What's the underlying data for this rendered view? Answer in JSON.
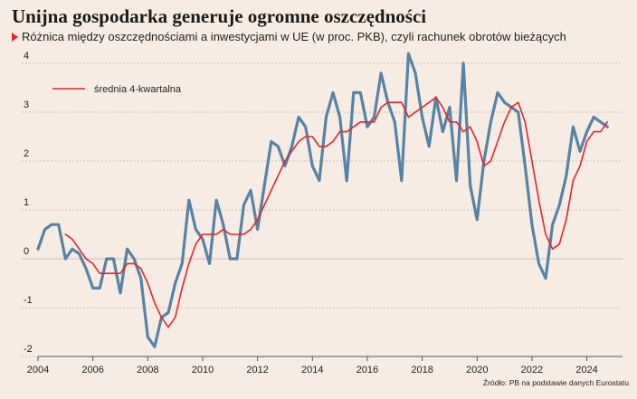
{
  "title": "Unijna gospodarka generuje ogromne oszczędności",
  "subtitle": "Różnica między oszczędnościami a inwestycjami w UE (w proc. PKB), czyli rachunek obrotów bieżących",
  "source": "Źródło: PB na podstawie danych Eurostatu",
  "colors": {
    "background": "#f7ece3",
    "main_series": "#5683a6",
    "avg_series": "#e0262b",
    "grid": "#b9b1ab",
    "accent": "#e0262b"
  },
  "chart_data": {
    "type": "line",
    "title": "Unijna gospodarka generuje ogromne oszczędności",
    "xlabel": "",
    "ylabel": "",
    "xlim": [
      2004,
      2025.3
    ],
    "ylim": [
      -2,
      4
    ],
    "grid": true,
    "legend_position": "top-left",
    "x_ticks": [
      "2004",
      "2006",
      "2008",
      "2010",
      "2012",
      "2014",
      "2016",
      "2018",
      "2020",
      "2022",
      "2024"
    ],
    "y_ticks": [
      "-2",
      "-1",
      "0",
      "1",
      "2",
      "3",
      "4"
    ],
    "series": [
      {
        "name": "",
        "values": [
          [
            2004.0,
            0.2
          ],
          [
            2004.25,
            0.6
          ],
          [
            2004.5,
            0.7
          ],
          [
            2004.75,
            0.7
          ],
          [
            2005.0,
            0.0
          ],
          [
            2005.25,
            0.2
          ],
          [
            2005.5,
            0.1
          ],
          [
            2005.75,
            -0.2
          ],
          [
            2006.0,
            -0.6
          ],
          [
            2006.25,
            -0.6
          ],
          [
            2006.5,
            0.0
          ],
          [
            2006.75,
            0.0
          ],
          [
            2007.0,
            -0.7
          ],
          [
            2007.25,
            0.2
          ],
          [
            2007.5,
            0.0
          ],
          [
            2007.75,
            -0.4
          ],
          [
            2008.0,
            -1.6
          ],
          [
            2008.25,
            -1.8
          ],
          [
            2008.5,
            -1.2
          ],
          [
            2008.75,
            -1.1
          ],
          [
            2009.0,
            -0.5
          ],
          [
            2009.25,
            -0.1
          ],
          [
            2009.5,
            1.2
          ],
          [
            2009.75,
            0.6
          ],
          [
            2010.0,
            0.4
          ],
          [
            2010.25,
            -0.1
          ],
          [
            2010.5,
            1.2
          ],
          [
            2010.75,
            0.7
          ],
          [
            2011.0,
            0.0
          ],
          [
            2011.25,
            0.0
          ],
          [
            2011.5,
            1.1
          ],
          [
            2011.75,
            1.4
          ],
          [
            2012.0,
            0.6
          ],
          [
            2012.25,
            1.5
          ],
          [
            2012.5,
            2.4
          ],
          [
            2012.75,
            2.3
          ],
          [
            2013.0,
            1.9
          ],
          [
            2013.25,
            2.3
          ],
          [
            2013.5,
            2.9
          ],
          [
            2013.75,
            2.7
          ],
          [
            2014.0,
            1.9
          ],
          [
            2014.25,
            1.6
          ],
          [
            2014.5,
            2.9
          ],
          [
            2014.75,
            3.4
          ],
          [
            2015.0,
            2.9
          ],
          [
            2015.25,
            1.6
          ],
          [
            2015.5,
            3.4
          ],
          [
            2015.75,
            3.4
          ],
          [
            2016.0,
            2.7
          ],
          [
            2016.25,
            2.9
          ],
          [
            2016.5,
            3.8
          ],
          [
            2016.75,
            3.2
          ],
          [
            2017.0,
            2.8
          ],
          [
            2017.25,
            1.6
          ],
          [
            2017.5,
            4.2
          ],
          [
            2017.75,
            3.8
          ],
          [
            2018.0,
            2.9
          ],
          [
            2018.25,
            2.3
          ],
          [
            2018.5,
            3.3
          ],
          [
            2018.75,
            2.6
          ],
          [
            2019.0,
            3.1
          ],
          [
            2019.25,
            1.6
          ],
          [
            2019.5,
            4.0
          ],
          [
            2019.75,
            1.5
          ],
          [
            2020.0,
            0.8
          ],
          [
            2020.25,
            2.0
          ],
          [
            2020.5,
            2.8
          ],
          [
            2020.75,
            3.4
          ],
          [
            2021.0,
            3.2
          ],
          [
            2021.25,
            3.1
          ],
          [
            2021.5,
            3.0
          ],
          [
            2021.75,
            1.9
          ],
          [
            2022.0,
            0.7
          ],
          [
            2022.25,
            -0.1
          ],
          [
            2022.5,
            -0.4
          ],
          [
            2022.75,
            0.7
          ],
          [
            2023.0,
            1.1
          ],
          [
            2023.25,
            1.7
          ],
          [
            2023.5,
            2.7
          ],
          [
            2023.75,
            2.2
          ],
          [
            2024.0,
            2.6
          ],
          [
            2024.25,
            2.9
          ],
          [
            2024.5,
            2.8
          ],
          [
            2024.75,
            2.7
          ]
        ]
      },
      {
        "name": "średnia 4-kwartalna",
        "values": [
          [
            2005.0,
            0.5
          ],
          [
            2005.25,
            0.4
          ],
          [
            2005.5,
            0.2
          ],
          [
            2005.75,
            0.0
          ],
          [
            2006.0,
            -0.1
          ],
          [
            2006.25,
            -0.3
          ],
          [
            2006.5,
            -0.3
          ],
          [
            2006.75,
            -0.3
          ],
          [
            2007.0,
            -0.3
          ],
          [
            2007.25,
            -0.1
          ],
          [
            2007.5,
            -0.1
          ],
          [
            2007.75,
            -0.2
          ],
          [
            2008.0,
            -0.5
          ],
          [
            2008.25,
            -0.9
          ],
          [
            2008.5,
            -1.2
          ],
          [
            2008.75,
            -1.4
          ],
          [
            2009.0,
            -1.2
          ],
          [
            2009.25,
            -0.6
          ],
          [
            2009.5,
            -0.1
          ],
          [
            2009.75,
            0.3
          ],
          [
            2010.0,
            0.5
          ],
          [
            2010.25,
            0.5
          ],
          [
            2010.5,
            0.5
          ],
          [
            2010.75,
            0.6
          ],
          [
            2011.0,
            0.5
          ],
          [
            2011.25,
            0.5
          ],
          [
            2011.5,
            0.5
          ],
          [
            2011.75,
            0.6
          ],
          [
            2012.0,
            0.8
          ],
          [
            2012.25,
            1.1
          ],
          [
            2012.5,
            1.4
          ],
          [
            2012.75,
            1.7
          ],
          [
            2013.0,
            2.0
          ],
          [
            2013.25,
            2.2
          ],
          [
            2013.5,
            2.4
          ],
          [
            2013.75,
            2.5
          ],
          [
            2014.0,
            2.5
          ],
          [
            2014.25,
            2.3
          ],
          [
            2014.5,
            2.3
          ],
          [
            2014.75,
            2.4
          ],
          [
            2015.0,
            2.6
          ],
          [
            2015.25,
            2.6
          ],
          [
            2015.5,
            2.7
          ],
          [
            2015.75,
            2.8
          ],
          [
            2016.0,
            2.8
          ],
          [
            2016.25,
            2.8
          ],
          [
            2016.5,
            3.1
          ],
          [
            2016.75,
            3.2
          ],
          [
            2017.0,
            3.2
          ],
          [
            2017.25,
            3.2
          ],
          [
            2017.5,
            2.9
          ],
          [
            2017.75,
            3.0
          ],
          [
            2018.0,
            3.1
          ],
          [
            2018.25,
            3.2
          ],
          [
            2018.5,
            3.3
          ],
          [
            2018.75,
            3.1
          ],
          [
            2019.0,
            2.8
          ],
          [
            2019.25,
            2.8
          ],
          [
            2019.5,
            2.6
          ],
          [
            2019.75,
            2.7
          ],
          [
            2020.0,
            2.4
          ],
          [
            2020.25,
            1.9
          ],
          [
            2020.5,
            2.0
          ],
          [
            2020.75,
            2.4
          ],
          [
            2021.0,
            2.8
          ],
          [
            2021.25,
            3.1
          ],
          [
            2021.5,
            3.2
          ],
          [
            2021.75,
            2.8
          ],
          [
            2022.0,
            2.0
          ],
          [
            2022.25,
            1.2
          ],
          [
            2022.5,
            0.5
          ],
          [
            2022.75,
            0.2
          ],
          [
            2023.0,
            0.3
          ],
          [
            2023.25,
            0.8
          ],
          [
            2023.5,
            1.6
          ],
          [
            2023.75,
            1.9
          ],
          [
            2024.0,
            2.4
          ],
          [
            2024.25,
            2.6
          ],
          [
            2024.5,
            2.6
          ],
          [
            2024.75,
            2.8
          ]
        ]
      }
    ]
  }
}
